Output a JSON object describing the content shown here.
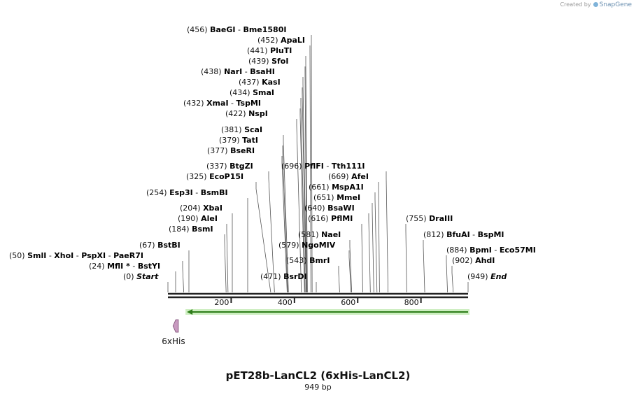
{
  "credit": {
    "prefix": "Created by",
    "brand": "SnapGene"
  },
  "title": "pET28b-LanCL2 (6xHis-LanCL2)",
  "subtitle": "949 bp",
  "sequence_length": 949,
  "ruler": {
    "ticks": [
      "200",
      "400",
      "600",
      "800"
    ]
  },
  "features": [
    {
      "name": "6xHis",
      "start": 16,
      "end": 33,
      "strand": "reverse",
      "color": "#c89ac0"
    },
    {
      "name": "",
      "start": 60,
      "end": 949,
      "strand": "reverse",
      "color": "#2e7d1a"
    }
  ],
  "enzymes": [
    {
      "pos": "(456)",
      "names": [
        "BaeGI",
        "Bme1580I"
      ],
      "position": 456
    },
    {
      "pos": "(452)",
      "names": [
        "ApaLI"
      ],
      "position": 452
    },
    {
      "pos": "(441)",
      "names": [
        "PluTI"
      ],
      "position": 441
    },
    {
      "pos": "(439)",
      "names": [
        "SfoI"
      ],
      "position": 439
    },
    {
      "pos": "(438)",
      "names": [
        "NarI",
        "BsaHI"
      ],
      "position": 438
    },
    {
      "pos": "(437)",
      "names": [
        "KasI"
      ],
      "position": 437
    },
    {
      "pos": "(434)",
      "names": [
        "SmaI"
      ],
      "position": 434
    },
    {
      "pos": "(432)",
      "names": [
        "XmaI",
        "TspMI"
      ],
      "position": 432
    },
    {
      "pos": "(422)",
      "names": [
        "NspI"
      ],
      "position": 422
    },
    {
      "pos": "(381)",
      "names": [
        "ScaI"
      ],
      "position": 381
    },
    {
      "pos": "(379)",
      "names": [
        "TatI"
      ],
      "position": 379
    },
    {
      "pos": "(377)",
      "names": [
        "BseRI"
      ],
      "position": 377
    },
    {
      "pos": "(337)",
      "names": [
        "BtgZI"
      ],
      "position": 337
    },
    {
      "pos": "(325)",
      "names": [
        "EcoP15I"
      ],
      "position": 325
    },
    {
      "pos": "(254)",
      "names": [
        "Esp3I",
        "BsmBI"
      ],
      "position": 254
    },
    {
      "pos": "(204)",
      "names": [
        "XbaI"
      ],
      "position": 204
    },
    {
      "pos": "(190)",
      "names": [
        "AleI"
      ],
      "position": 190
    },
    {
      "pos": "(184)",
      "names": [
        "BsmI"
      ],
      "position": 184
    },
    {
      "pos": "(67)",
      "names": [
        "BstBI"
      ],
      "position": 67
    },
    {
      "pos": "(50)",
      "names": [
        "SmlI",
        "XhoI",
        "PspXI",
        "PaeR7I"
      ],
      "position": 50
    },
    {
      "pos": "(24)",
      "names": [
        "MflI *",
        "BstYI"
      ],
      "position": 24
    },
    {
      "pos": "(0)",
      "names": [
        "Start"
      ],
      "position": 0,
      "italic": true
    },
    {
      "pos": "(696)",
      "names": [
        "PflFI",
        "Tth111I"
      ],
      "position": 696
    },
    {
      "pos": "(669)",
      "names": [
        "AfeI"
      ],
      "position": 669
    },
    {
      "pos": "(661)",
      "names": [
        "MspA1I"
      ],
      "position": 661
    },
    {
      "pos": "(651)",
      "names": [
        "MmeI"
      ],
      "position": 651
    },
    {
      "pos": "(640)",
      "names": [
        "BsaWI"
      ],
      "position": 640
    },
    {
      "pos": "(616)",
      "names": [
        "PflMI"
      ],
      "position": 616
    },
    {
      "pos": "(581)",
      "names": [
        "NaeI"
      ],
      "position": 581
    },
    {
      "pos": "(579)",
      "names": [
        "NgoMIV"
      ],
      "position": 579
    },
    {
      "pos": "(543)",
      "names": [
        "BmrI"
      ],
      "position": 543
    },
    {
      "pos": "(471)",
      "names": [
        "BsrDI"
      ],
      "position": 471
    },
    {
      "pos": "(755)",
      "names": [
        "DraIII"
      ],
      "position": 755
    },
    {
      "pos": "(812)",
      "names": [
        "BfuAI",
        "BspMI"
      ],
      "position": 812
    },
    {
      "pos": "(884)",
      "names": [
        "BpmI",
        "Eco57MI"
      ],
      "position": 884
    },
    {
      "pos": "(902)",
      "names": [
        "AhdI"
      ],
      "position": 902
    },
    {
      "pos": "(949)",
      "names": [
        "End"
      ],
      "position": 949,
      "italic": true
    }
  ]
}
